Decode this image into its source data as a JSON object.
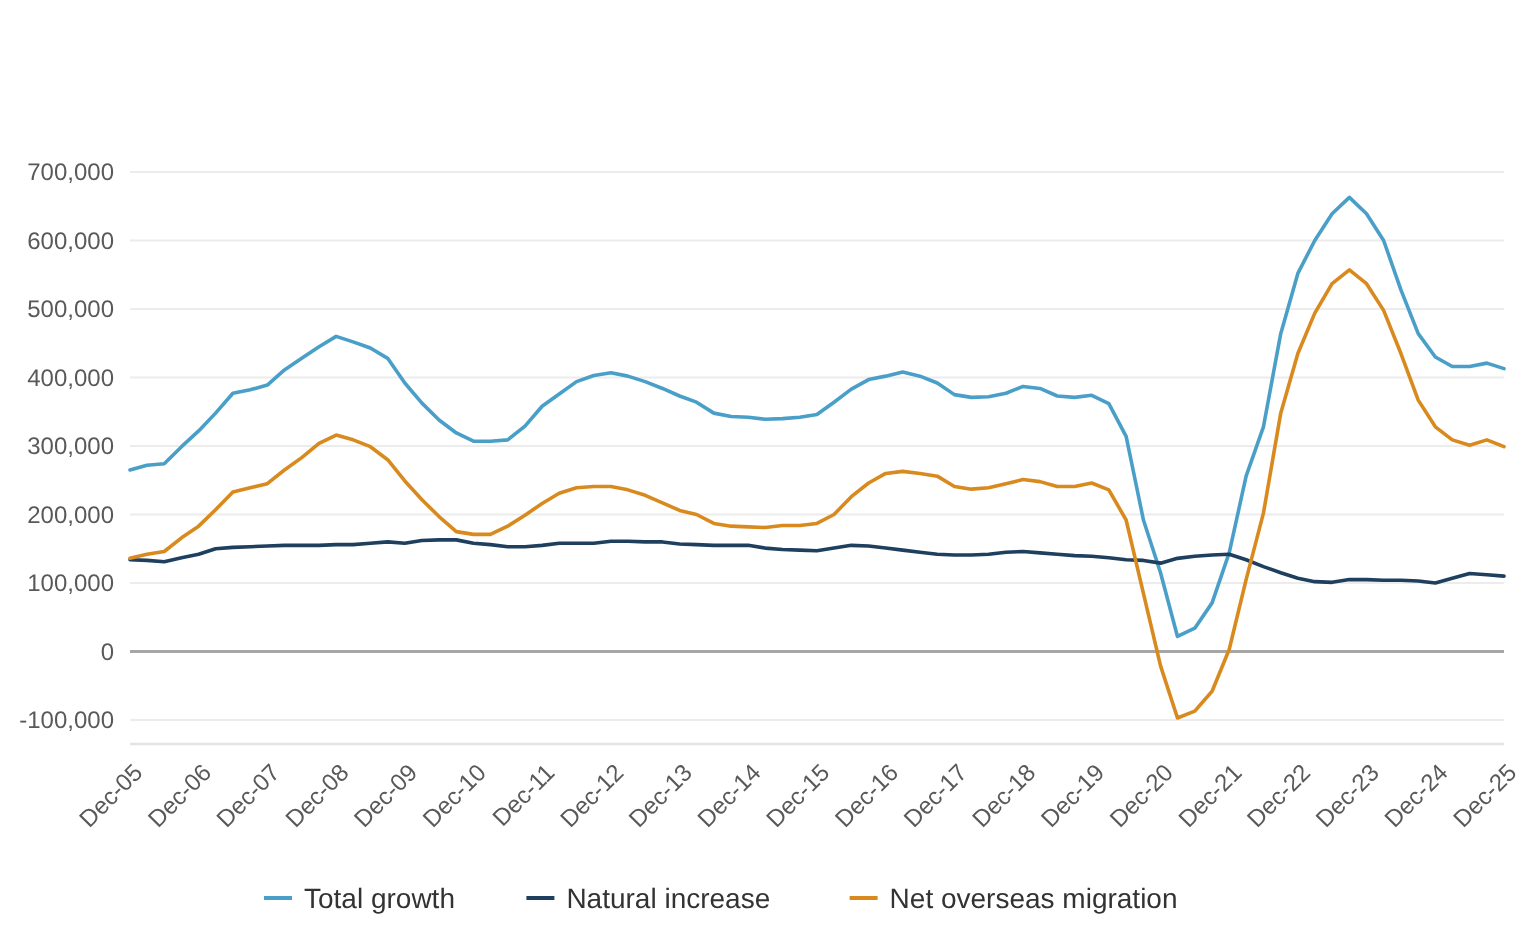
{
  "chart_data": {
    "type": "line",
    "x": [
      "2005-12",
      "2006-03",
      "2006-06",
      "2006-09",
      "2006-12",
      "2007-03",
      "2007-06",
      "2007-09",
      "2007-12",
      "2008-03",
      "2008-06",
      "2008-09",
      "2008-12",
      "2009-03",
      "2009-06",
      "2009-09",
      "2009-12",
      "2010-03",
      "2010-06",
      "2010-09",
      "2010-12",
      "2011-03",
      "2011-06",
      "2011-09",
      "2011-12",
      "2012-03",
      "2012-06",
      "2012-09",
      "2012-12",
      "2013-03",
      "2013-06",
      "2013-09",
      "2013-12",
      "2014-03",
      "2014-06",
      "2014-09",
      "2014-12",
      "2015-03",
      "2015-06",
      "2015-09",
      "2015-12",
      "2016-03",
      "2016-06",
      "2016-09",
      "2016-12",
      "2017-03",
      "2017-06",
      "2017-09",
      "2017-12",
      "2018-03",
      "2018-06",
      "2018-09",
      "2018-12",
      "2019-03",
      "2019-06",
      "2019-09",
      "2019-12",
      "2020-03",
      "2020-06",
      "2020-09",
      "2020-12",
      "2021-03",
      "2021-06",
      "2021-09",
      "2021-12",
      "2022-03",
      "2022-06",
      "2022-09",
      "2022-12",
      "2023-03",
      "2023-06",
      "2023-09",
      "2023-12",
      "2024-03",
      "2024-06",
      "2024-09",
      "2024-12",
      "2025-03",
      "2025-06",
      "2025-09",
      "2025-12"
    ],
    "series": [
      {
        "name": "Total growth",
        "color": "#4a9fc8",
        "values": [
          265000,
          272000,
          274000,
          299000,
          322000,
          348000,
          377000,
          382000,
          389000,
          411000,
          428000,
          445000,
          460000,
          452000,
          443000,
          428000,
          392000,
          363000,
          338000,
          319000,
          307000,
          307000,
          309000,
          329000,
          358000,
          376000,
          394000,
          403000,
          407000,
          402000,
          394000,
          384000,
          373000,
          364000,
          348000,
          343000,
          342000,
          339000,
          340000,
          342000,
          346000,
          364000,
          383000,
          397000,
          402000,
          408000,
          402000,
          392000,
          375000,
          371000,
          372000,
          377000,
          387000,
          384000,
          373000,
          371000,
          374000,
          362000,
          314000,
          192000,
          115000,
          22000,
          34000,
          71000,
          144000,
          256000,
          328000,
          464000,
          552000,
          600000,
          639000,
          663000,
          639000,
          600000,
          528000,
          464000,
          430000,
          416000,
          416000,
          421000,
          413000
        ]
      },
      {
        "name": "Natural increase",
        "color": "#1f3f5f",
        "values": [
          134000,
          133000,
          131000,
          137000,
          142000,
          150000,
          152000,
          153000,
          154000,
          155000,
          155000,
          155000,
          156000,
          156000,
          158000,
          160000,
          158000,
          162000,
          163000,
          163000,
          158000,
          156000,
          153000,
          153000,
          155000,
          158000,
          158000,
          158000,
          161000,
          161000,
          160000,
          160000,
          157000,
          156000,
          155000,
          155000,
          155000,
          151000,
          149000,
          148000,
          147000,
          151000,
          155000,
          154000,
          151000,
          148000,
          145000,
          142000,
          141000,
          141000,
          142000,
          145000,
          146000,
          144000,
          142000,
          140000,
          139000,
          137000,
          134000,
          133000,
          129000,
          136000,
          139000,
          141000,
          142000,
          134000,
          124000,
          115000,
          107000,
          102000,
          101000,
          105000,
          105000,
          104000,
          104000,
          103000,
          100000,
          107000,
          114000,
          112000,
          110000
        ]
      },
      {
        "name": "Net overseas migration",
        "color": "#d98a1f",
        "values": [
          136000,
          142000,
          146000,
          166000,
          183000,
          207000,
          233000,
          239000,
          245000,
          265000,
          283000,
          304000,
          316000,
          309000,
          299000,
          280000,
          249000,
          222000,
          197000,
          175000,
          171000,
          171000,
          183000,
          199000,
          216000,
          231000,
          239000,
          241000,
          241000,
          236000,
          228000,
          217000,
          206000,
          200000,
          187000,
          183000,
          182000,
          181000,
          184000,
          184000,
          187000,
          200000,
          226000,
          246000,
          260000,
          263000,
          260000,
          256000,
          241000,
          237000,
          239000,
          245000,
          251000,
          248000,
          241000,
          241000,
          246000,
          236000,
          192000,
          85000,
          -21000,
          -97000,
          -87000,
          -58000,
          3000,
          105000,
          202000,
          348000,
          435000,
          494000,
          537000,
          557000,
          537000,
          498000,
          435000,
          367000,
          328000,
          309000,
          301000,
          309000,
          299000
        ]
      }
    ],
    "xlim": [
      "2005-12",
      "2025-12"
    ],
    "xticks": [
      {
        "value": "2005-12",
        "label": "Dec-05"
      },
      {
        "value": "2006-12",
        "label": "Dec-06"
      },
      {
        "value": "2007-12",
        "label": "Dec-07"
      },
      {
        "value": "2008-12",
        "label": "Dec-08"
      },
      {
        "value": "2009-12",
        "label": "Dec-09"
      },
      {
        "value": "2010-12",
        "label": "Dec-10"
      },
      {
        "value": "2011-12",
        "label": "Dec-11"
      },
      {
        "value": "2012-12",
        "label": "Dec-12"
      },
      {
        "value": "2013-12",
        "label": "Dec-13"
      },
      {
        "value": "2014-12",
        "label": "Dec-14"
      },
      {
        "value": "2015-12",
        "label": "Dec-15"
      },
      {
        "value": "2016-12",
        "label": "Dec-16"
      },
      {
        "value": "2017-12",
        "label": "Dec-17"
      },
      {
        "value": "2018-12",
        "label": "Dec-18"
      },
      {
        "value": "2019-12",
        "label": "Dec-19"
      },
      {
        "value": "2020-12",
        "label": "Dec-20"
      },
      {
        "value": "2021-12",
        "label": "Dec-21"
      },
      {
        "value": "2022-12",
        "label": "Dec-22"
      },
      {
        "value": "2023-12",
        "label": "Dec-23"
      },
      {
        "value": "2024-12",
        "label": "Dec-24"
      },
      {
        "value": "2025-12",
        "label": "Dec-25"
      }
    ],
    "ylim": [
      -135000,
      700000
    ],
    "yticks": [
      {
        "value": -100000,
        "label": "-100,000"
      },
      0,
      {
        "value": 100000,
        "label": "100,000"
      },
      {
        "value": 200000,
        "label": "200,000"
      },
      {
        "value": 300000,
        "label": "300,000"
      },
      {
        "value": 400000,
        "label": "400,000"
      },
      {
        "value": 500000,
        "label": "500,000"
      },
      {
        "value": 600000,
        "label": "600,000"
      },
      {
        "value": 700000,
        "label": "700,000"
      }
    ],
    "grid": "y",
    "legend": "bottom",
    "marker": "none",
    "line_style": "solid"
  }
}
